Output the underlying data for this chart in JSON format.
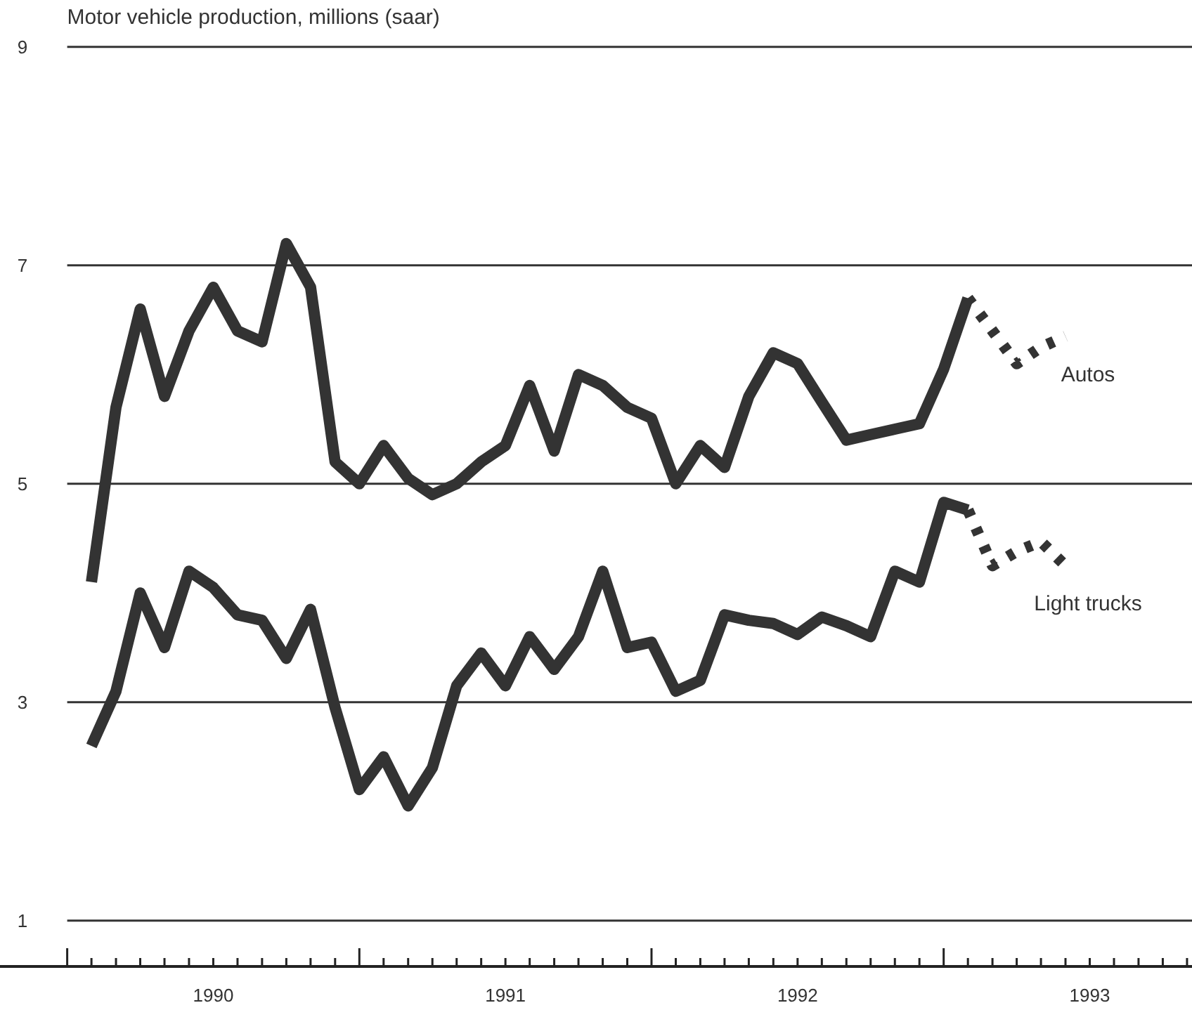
{
  "chart_data": {
    "type": "line",
    "title": "Motor vehicle production, millions (saar)",
    "xlim": [
      1989.77,
      1993.85
    ],
    "xticks": [
      {
        "value": 1990,
        "label": null
      },
      {
        "value": 1990.083,
        "label": null
      },
      {
        "value": 1990.167,
        "label": null
      },
      {
        "value": 1990.25,
        "label": null
      },
      {
        "value": 1990.333,
        "label": null
      },
      {
        "value": 1990.417,
        "label": null
      },
      {
        "value": 1990.5,
        "label": "1990"
      },
      {
        "value": 1990.583,
        "label": null
      },
      {
        "value": 1990.667,
        "label": null
      },
      {
        "value": 1990.75,
        "label": null
      },
      {
        "value": 1990.833,
        "label": null
      },
      {
        "value": 1990.917,
        "label": null
      },
      {
        "value": 1991,
        "label": null
      },
      {
        "value": 1991.083,
        "label": null
      },
      {
        "value": 1991.167,
        "label": null
      },
      {
        "value": 1991.25,
        "label": null
      },
      {
        "value": 1991.333,
        "label": null
      },
      {
        "value": 1991.417,
        "label": null
      },
      {
        "value": 1991.5,
        "label": "1991"
      },
      {
        "value": 1991.583,
        "label": null
      },
      {
        "value": 1991.667,
        "label": null
      },
      {
        "value": 1991.75,
        "label": null
      },
      {
        "value": 1991.833,
        "label": null
      },
      {
        "value": 1991.917,
        "label": null
      },
      {
        "value": 1992,
        "label": null
      },
      {
        "value": 1992.083,
        "label": null
      },
      {
        "value": 1992.167,
        "label": null
      },
      {
        "value": 1992.25,
        "label": null
      },
      {
        "value": 1992.333,
        "label": null
      },
      {
        "value": 1992.417,
        "label": null
      },
      {
        "value": 1992.5,
        "label": "1992"
      },
      {
        "value": 1992.583,
        "label": null
      },
      {
        "value": 1992.667,
        "label": null
      },
      {
        "value": 1992.75,
        "label": null
      },
      {
        "value": 1992.833,
        "label": null
      },
      {
        "value": 1992.917,
        "label": null
      },
      {
        "value": 1993,
        "label": null
      },
      {
        "value": 1993.083,
        "label": null
      },
      {
        "value": 1993.167,
        "label": null
      },
      {
        "value": 1993.25,
        "label": null
      },
      {
        "value": 1993.333,
        "label": null
      },
      {
        "value": 1993.417,
        "label": null
      },
      {
        "value": 1993.5,
        "label": "1993"
      },
      {
        "value": 1993.583,
        "label": null
      },
      {
        "value": 1993.667,
        "label": null
      },
      {
        "value": 1993.75,
        "label": null
      },
      {
        "value": 1993.833,
        "label": null
      }
    ],
    "ylim": [
      0.58,
      9.43
    ],
    "yticks": [
      1,
      3,
      5,
      7,
      9
    ],
    "grid": "y",
    "series": [
      {
        "color": "#333333",
        "line_style": "solid",
        "x": [
          1990.083,
          1990.167,
          1990.25,
          1990.333,
          1990.417,
          1990.5,
          1990.583,
          1990.667,
          1990.75,
          1990.833,
          1990.917,
          1991,
          1991.083,
          1991.167,
          1991.25,
          1991.333,
          1991.417,
          1991.5,
          1991.583,
          1991.667,
          1991.75,
          1991.833,
          1991.917,
          1992,
          1992.083,
          1992.167,
          1992.25,
          1992.333,
          1992.417,
          1992.5,
          1992.583,
          1992.667,
          1992.75,
          1992.833,
          1992.917,
          1993,
          1993.083
        ],
        "values": [
          4.1,
          5.7,
          6.6,
          5.8,
          6.4,
          6.8,
          6.4,
          6.3,
          7.2,
          6.8,
          5.2,
          5.0,
          5.35,
          5.05,
          4.9,
          5.0,
          5.2,
          5.35,
          5.9,
          5.3,
          6.0,
          5.9,
          5.7,
          5.6,
          5.0,
          5.35,
          5.15,
          5.8,
          6.2,
          6.1,
          5.75,
          5.4,
          5.45,
          5.5,
          5.55,
          6.05,
          6.7
        ]
      },
      {
        "name": "Autos",
        "color": "#333333",
        "line_style": "dotted",
        "x": [
          1993.083,
          1993.167,
          1993.25,
          1993.333,
          1993.417
        ],
        "values": [
          6.7,
          6.4,
          6.1,
          6.25,
          6.35
        ]
      },
      {
        "color": "#333333",
        "line_style": "solid",
        "x": [
          1990.083,
          1990.167,
          1990.25,
          1990.333,
          1990.417,
          1990.5,
          1990.583,
          1990.667,
          1990.75,
          1990.833,
          1990.917,
          1991,
          1991.083,
          1991.167,
          1991.25,
          1991.333,
          1991.417,
          1991.5,
          1991.583,
          1991.667,
          1991.75,
          1991.833,
          1991.917,
          1992,
          1992.083,
          1992.167,
          1992.25,
          1992.333,
          1992.417,
          1992.5,
          1992.583,
          1992.667,
          1992.75,
          1992.833,
          1992.917,
          1993,
          1993.083
        ],
        "values": [
          2.6,
          3.1,
          4.0,
          3.5,
          4.2,
          4.05,
          3.8,
          3.75,
          3.4,
          3.85,
          2.95,
          2.2,
          2.5,
          2.05,
          2.4,
          3.15,
          3.45,
          3.15,
          3.6,
          3.3,
          3.6,
          4.2,
          3.5,
          3.55,
          3.1,
          3.2,
          3.8,
          3.75,
          3.72,
          3.62,
          3.78,
          3.7,
          3.6,
          4.2,
          4.1,
          4.83,
          4.76
        ]
      },
      {
        "name": "Light trucks",
        "color": "#333333",
        "line_style": "dotted",
        "x": [
          1993.083,
          1993.167,
          1993.25,
          1993.333,
          1993.417
        ],
        "values": [
          4.76,
          4.25,
          4.38,
          4.47,
          4.25
        ]
      }
    ]
  }
}
